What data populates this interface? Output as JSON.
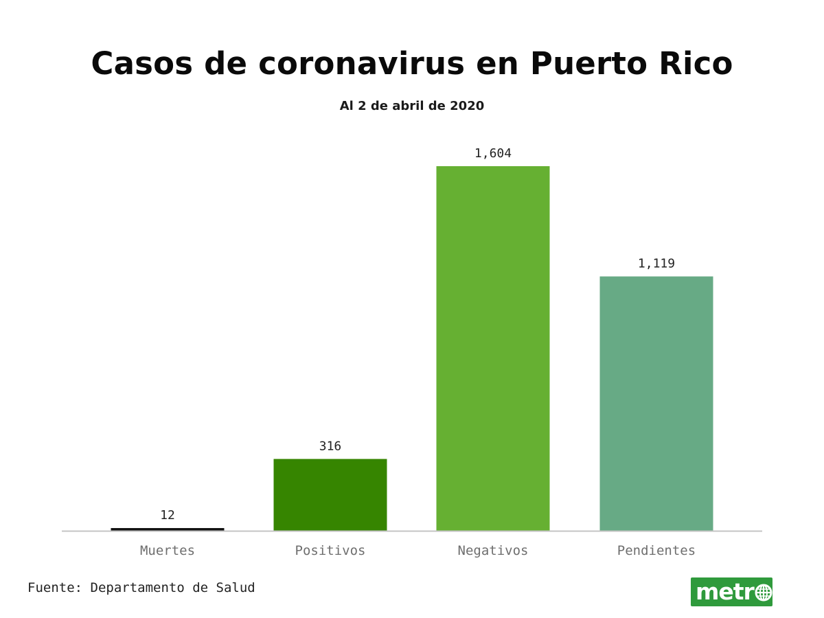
{
  "title": "Casos de coronavirus en Puerto Rico",
  "subtitle": "Al 2 de abril de 2020",
  "source": "Fuente: Departamento de Salud",
  "logo": {
    "text": "metr",
    "brand_color": "#2f9a3c"
  },
  "chart_data": {
    "type": "bar",
    "categories": [
      "Muertes",
      "Positivos",
      "Negativos",
      "Pendientes"
    ],
    "values": [
      12,
      316,
      1604,
      1119
    ],
    "value_labels": [
      "12",
      "316",
      "1,604",
      "1,119"
    ],
    "colors": [
      "#111111",
      "#368500",
      "#66b032",
      "#67aa85"
    ],
    "xlabel": "",
    "ylabel": "",
    "ylim": [
      0,
      1604
    ],
    "grid": false,
    "legend": "none"
  }
}
